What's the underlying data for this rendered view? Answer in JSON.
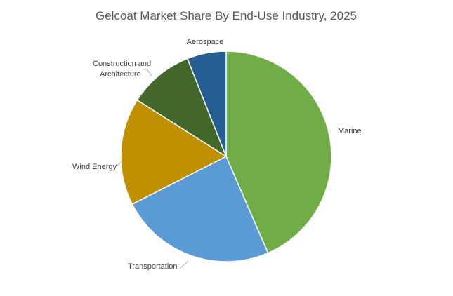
{
  "chart_data": {
    "type": "pie",
    "title": "Gelcoat Market Share By End-Use Industry, 2025",
    "slices": [
      {
        "label": "Marine",
        "value": 43.5,
        "color": "#70ad47"
      },
      {
        "label": "Transportation",
        "value": 24.0,
        "color": "#5b9bd5"
      },
      {
        "label": "Wind Energy",
        "value": 16.5,
        "color": "#bf9000"
      },
      {
        "label": "Construction and\nArchitecture",
        "value": 10.0,
        "color": "#43682b"
      },
      {
        "label": "Aerospace",
        "value": 6.0,
        "color": "#255e91"
      }
    ],
    "start_angle_deg": 0,
    "direction": "clockwise",
    "legend": "none",
    "data_labels": "category names outside slices"
  }
}
